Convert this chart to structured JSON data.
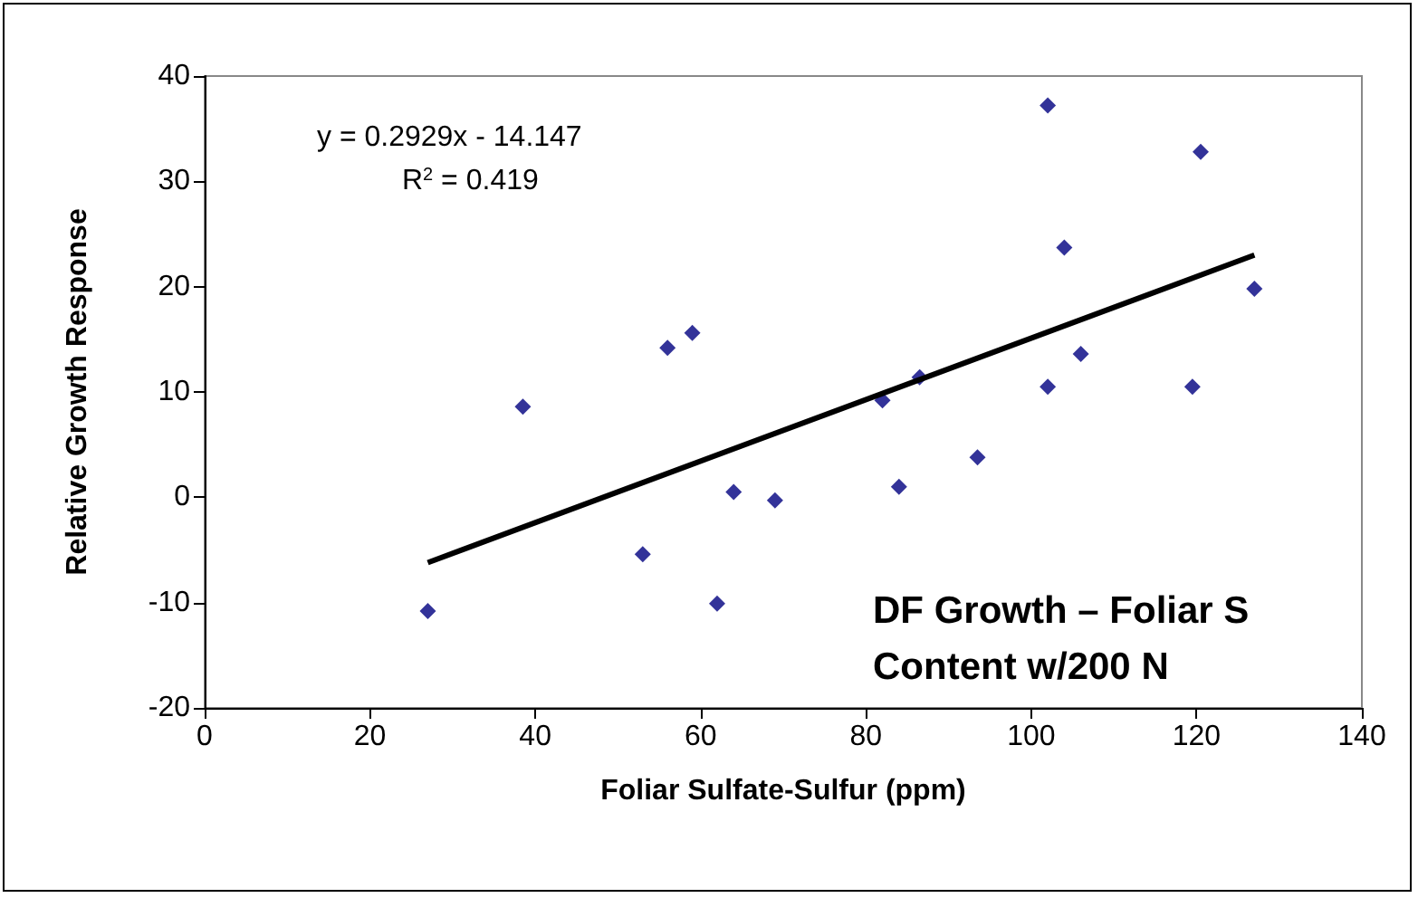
{
  "chart_data": {
    "type": "scatter",
    "xlabel": "Foliar Sulfate-Sulfur (ppm)",
    "ylabel": "Relative Growth Response",
    "annotations": [
      "y = 0.2929x - 14.147",
      "R$^{2}$ = 0.419",
      "DF Growth – Foliar S\nContent w/200 N"
    ],
    "xlim": [
      0,
      140
    ],
    "xticks": [
      0,
      20,
      40,
      60,
      80,
      100,
      120,
      140
    ],
    "ylim": [
      -20,
      40
    ],
    "yticks": [
      -20,
      -10,
      0,
      10,
      20,
      30,
      40
    ],
    "grid": false,
    "marker": "diamond",
    "series": [
      {
        "color": "#000080",
        "x": [
          27,
          38.5,
          53,
          56,
          59,
          62,
          64,
          69,
          82,
          84,
          86.5,
          93.5,
          102,
          102,
          104,
          106,
          119.5,
          120.5,
          127
        ],
        "values": [
          -10.8,
          8.6,
          -5.4,
          14.2,
          15.6,
          -10.1,
          0.5,
          -0.3,
          9.2,
          1,
          11.4,
          3.8,
          37.2,
          10.5,
          23.7,
          13.6,
          10.5,
          32.8,
          19.8
        ]
      },
      {
        "type": "line",
        "color": "#000000",
        "x": [
          27,
          127
        ],
        "values": [
          -6.2,
          23.0
        ],
        "marker": "none",
        "line_style": "solid"
      }
    ]
  }
}
